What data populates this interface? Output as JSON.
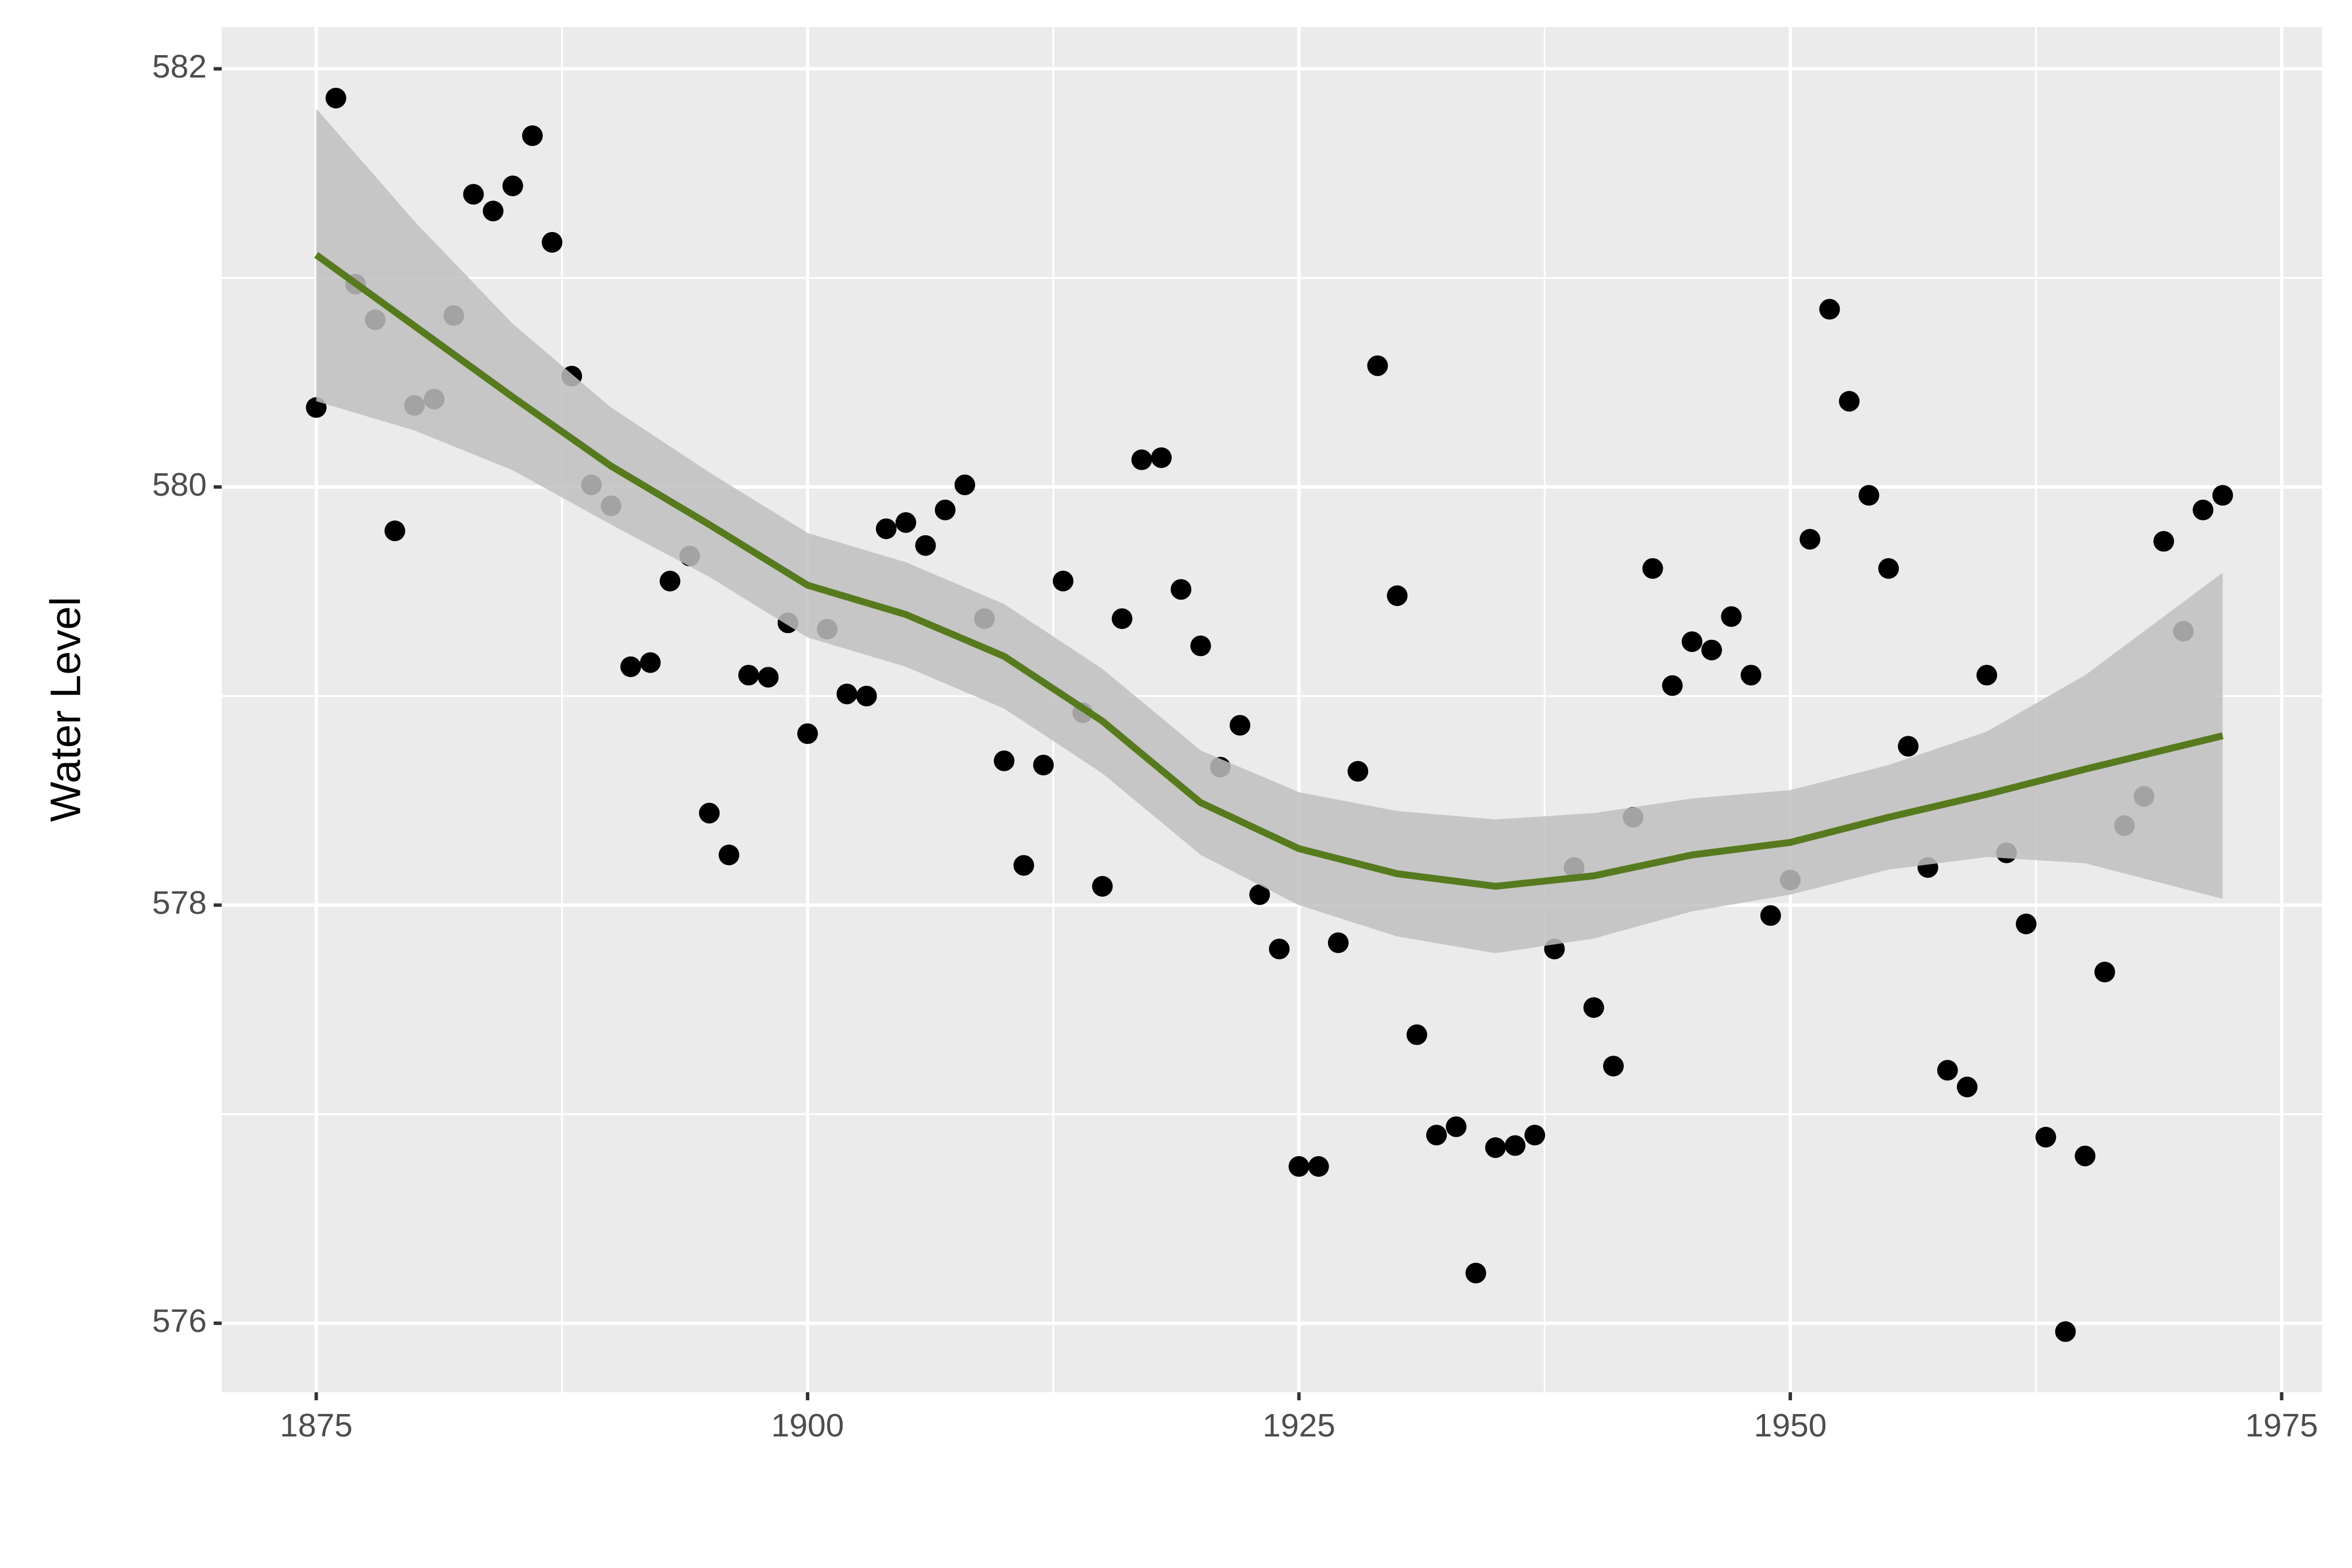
{
  "chart_data": {
    "type": "scatter",
    "y_label": "Water Level",
    "x": [
      1875,
      1876,
      1877,
      1878,
      1879,
      1880,
      1881,
      1882,
      1883,
      1884,
      1885,
      1886,
      1887,
      1888,
      1889,
      1890,
      1891,
      1892,
      1893,
      1894,
      1895,
      1896,
      1897,
      1898,
      1899,
      1900,
      1901,
      1902,
      1903,
      1904,
      1905,
      1906,
      1907,
      1908,
      1909,
      1910,
      1911,
      1912,
      1913,
      1914,
      1915,
      1916,
      1917,
      1918,
      1919,
      1920,
      1921,
      1922,
      1923,
      1924,
      1925,
      1926,
      1927,
      1928,
      1929,
      1930,
      1931,
      1932,
      1933,
      1934,
      1935,
      1936,
      1937,
      1938,
      1939,
      1940,
      1941,
      1942,
      1943,
      1944,
      1945,
      1946,
      1947,
      1948,
      1949,
      1950,
      1951,
      1952,
      1953,
      1954,
      1955,
      1956,
      1957,
      1958,
      1959,
      1960,
      1961,
      1962,
      1963,
      1964,
      1965,
      1966,
      1967,
      1968,
      1969,
      1970,
      1971,
      1972
    ],
    "values": [
      580.38,
      581.86,
      580.97,
      580.8,
      579.79,
      580.39,
      580.42,
      580.82,
      581.4,
      581.32,
      581.44,
      581.68,
      581.17,
      580.53,
      580.01,
      579.91,
      579.14,
      579.16,
      579.55,
      579.67,
      578.44,
      578.24,
      579.1,
      579.09,
      579.35,
      578.82,
      579.32,
      579.01,
      579.0,
      579.8,
      579.83,
      579.72,
      579.89,
      580.01,
      579.37,
      578.69,
      578.19,
      578.67,
      579.55,
      578.92,
      578.09,
      579.37,
      580.13,
      580.14,
      579.51,
      579.24,
      578.66,
      578.86,
      578.05,
      577.79,
      576.75,
      576.75,
      577.82,
      578.64,
      580.58,
      579.48,
      577.38,
      576.9,
      576.94,
      576.24,
      576.84,
      576.85,
      576.9,
      577.79,
      578.18,
      577.51,
      577.23,
      578.42,
      579.61,
      579.05,
      579.26,
      579.22,
      579.38,
      579.1,
      577.95,
      578.12,
      579.75,
      580.85,
      580.41,
      579.96,
      579.61,
      578.76,
      578.18,
      577.21,
      577.13,
      579.1,
      578.25,
      577.91,
      576.89,
      575.96,
      576.8,
      577.68,
      578.38,
      578.52,
      579.74,
      579.31,
      579.89,
      579.96
    ],
    "color": "#000000",
    "xlim": [
      1870.19,
      1977.06
    ],
    "ylim": [
      575.67,
      582.2
    ],
    "xticks": [
      1875,
      1900,
      1925,
      1950,
      1975
    ],
    "yticks": [
      576,
      578,
      580,
      582
    ],
    "grid": true,
    "smooth": {
      "color": "#567a1d",
      "ribbon_color": "#c0c0c0",
      "x": [
        1875,
        1880,
        1885,
        1890,
        1895,
        1900,
        1905,
        1910,
        1915,
        1920,
        1925,
        1930,
        1935,
        1940,
        1945,
        1950,
        1955,
        1960,
        1965,
        1972
      ],
      "values": [
        581.11,
        580.77,
        580.43,
        580.1,
        579.82,
        579.53,
        579.39,
        579.19,
        578.88,
        578.49,
        578.27,
        578.15,
        578.09,
        578.14,
        578.24,
        578.3,
        578.42,
        578.53,
        578.65,
        578.81
      ],
      "lower": [
        580.41,
        580.27,
        580.08,
        579.82,
        579.57,
        579.28,
        579.14,
        578.94,
        578.63,
        578.24,
        578.0,
        577.85,
        577.77,
        577.84,
        577.97,
        578.05,
        578.17,
        578.23,
        578.2,
        578.03
      ],
      "upper": [
        581.81,
        581.27,
        580.78,
        580.38,
        580.07,
        579.78,
        579.64,
        579.44,
        579.13,
        578.74,
        578.54,
        578.45,
        578.41,
        578.44,
        578.51,
        578.55,
        578.67,
        578.83,
        579.1,
        579.59
      ]
    }
  }
}
